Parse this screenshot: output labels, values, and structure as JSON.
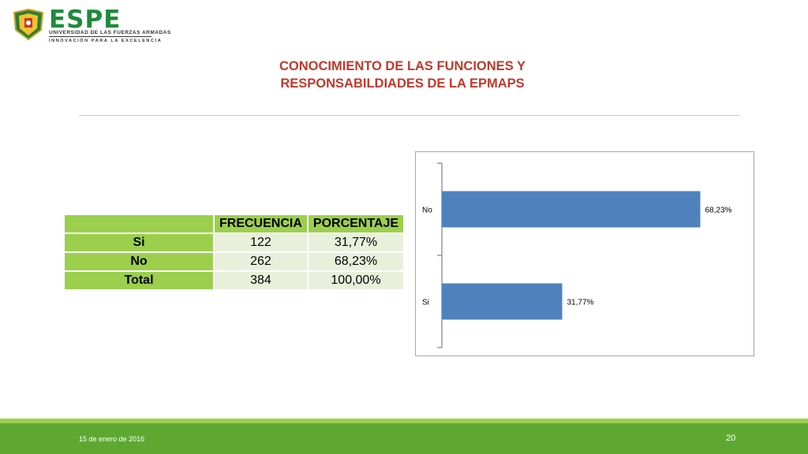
{
  "logo": {
    "icon": "espe-crest-icon",
    "wordmark": "ESPE",
    "subtitle": "UNIVERSIDAD DE LAS FUERZAS ARMADAS",
    "tagline": "INNOVACIÓN PARA LA EXCELENCIA"
  },
  "title": {
    "line1": "CONOCIMIENTO DE LAS FUNCIONES Y",
    "line2": "RESPONSABILDIADES DE LA EPMAPS"
  },
  "table": {
    "headers": [
      "",
      "FRECUENCIA",
      "PORCENTAJE"
    ],
    "rows": [
      {
        "label": "Si",
        "frecuencia": "122",
        "porcentaje": "31,77%"
      },
      {
        "label": "No",
        "frecuencia": "262",
        "porcentaje": "68,23%"
      },
      {
        "label": "Total",
        "frecuencia": "384",
        "porcentaje": "100,00%"
      }
    ]
  },
  "chart_data": {
    "type": "bar",
    "orientation": "horizontal",
    "categories": [
      "No",
      "Si"
    ],
    "values": [
      68.23,
      31.77
    ],
    "data_labels": [
      "68,23%",
      "31,77%"
    ],
    "xlim": [
      0,
      100
    ],
    "bar_color": "#4f81bd",
    "grid": false
  },
  "footer": {
    "date": "15 de enero de 2016",
    "page": "20"
  },
  "colors": {
    "accent_green": "#5ea832",
    "light_green": "#9ccf4e",
    "title_red": "#c0392b"
  }
}
